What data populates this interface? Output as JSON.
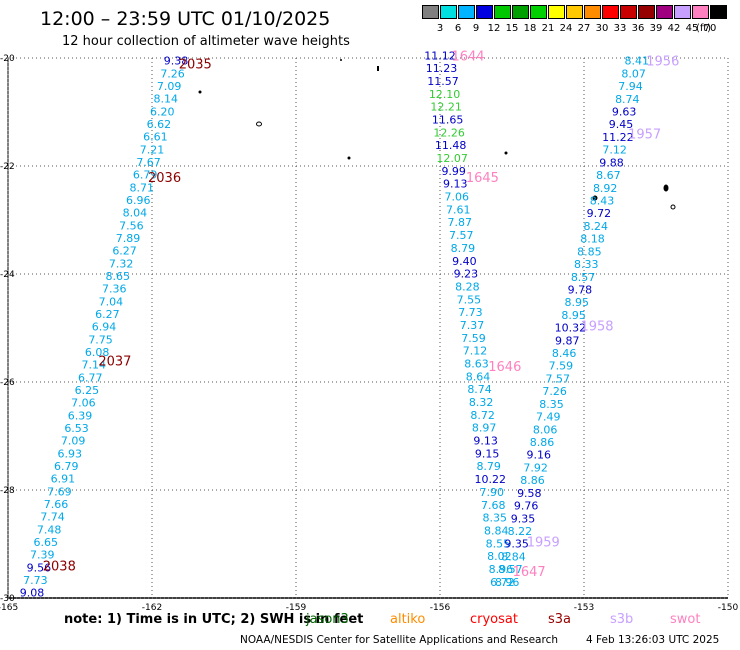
{
  "header": {
    "title": "12:00 – 23:59 UTC 01/10/2025",
    "subtitle": "12 hour collection of altimeter wave heights"
  },
  "scale": {
    "unit": "(ft)",
    "items": [
      {
        "label": "3",
        "color": "#808080"
      },
      {
        "label": "6",
        "color": "#00e0e0"
      },
      {
        "label": "9",
        "color": "#00b4ff"
      },
      {
        "label": "12",
        "color": "#0000e0"
      },
      {
        "label": "15",
        "color": "#00c800"
      },
      {
        "label": "18",
        "color": "#00a000"
      },
      {
        "label": "21",
        "color": "#00d000"
      },
      {
        "label": "24",
        "color": "#ffff00"
      },
      {
        "label": "27",
        "color": "#ffc800"
      },
      {
        "label": "30",
        "color": "#ff8c00"
      },
      {
        "label": "33",
        "color": "#ff0000"
      },
      {
        "label": "36",
        "color": "#c80000"
      },
      {
        "label": "39",
        "color": "#960000"
      },
      {
        "label": "42",
        "color": "#a00080"
      },
      {
        "label": "45",
        "color": "#c8a0ff"
      },
      {
        "label": "70",
        "color": "#ff80c0"
      },
      {
        "label": "",
        "color": "#000000"
      }
    ]
  },
  "map": {
    "lat_ticks": [
      "-20",
      "-22",
      "-24",
      "-26",
      "-28",
      "-30"
    ],
    "lon_ticks": [
      "-165",
      "-162",
      "-159",
      "-156",
      "-153",
      "-150"
    ]
  },
  "tracks": {
    "jason3": {
      "times": [
        {
          "label": "2035",
          "lat": -20.1
        },
        {
          "label": "2036",
          "lat": -22.2
        },
        {
          "label": "2037",
          "lat": -25.6
        },
        {
          "label": "2038",
          "lat": -29.4
        }
      ],
      "values": [
        "9.38",
        "7.26",
        "7.09",
        "8.14",
        "6.20",
        "6.62",
        "6.61",
        "7.21",
        "7.67",
        "6.79",
        "8.71",
        "6.96",
        "8.04",
        "7.56",
        "7.89",
        "6.27",
        "7.32",
        "8.65",
        "7.36",
        "7.04",
        "6.27",
        "6.94",
        "7.75",
        "6.08",
        "7.14",
        "6.77",
        "6.25",
        "7.06",
        "6.39",
        "6.53",
        "7.09",
        "6.93",
        "6.79",
        "6.91",
        "7.69",
        "7.66",
        "7.74",
        "7.48",
        "6.65",
        "7.39",
        "9.56",
        "7.73",
        "9.08"
      ]
    },
    "altika": {
      "times": [
        {
          "label": "1644",
          "lat": -19.95
        },
        {
          "label": "1645",
          "lat": -22.2
        },
        {
          "label": "1646",
          "lat": -25.7
        },
        {
          "label": "1647",
          "lat": -29.5
        }
      ],
      "values": [
        "11.12",
        "11.23",
        "11.57",
        "12.10",
        "12.21",
        "11.65",
        "12.26",
        "11.48",
        "12.07",
        "9.99",
        "9.13",
        "7.06",
        "7.61",
        "7.87",
        "7.57",
        "8.79",
        "9.40",
        "9.23",
        "8.28",
        "7.55",
        "7.73",
        "7.37",
        "7.59",
        "7.12",
        "8.63",
        "8.64",
        "8.74",
        "8.32",
        "8.72",
        "8.97",
        "9.13",
        "9.15",
        "8.79",
        "10.22",
        "7.90",
        "7.68",
        "8.35",
        "8.84",
        "8.55",
        "8.02",
        "8.96",
        "6.72"
      ]
    },
    "s3a": {
      "times": [
        {
          "label": "1956",
          "lat": -20.05
        },
        {
          "label": "1957",
          "lat": -21.4
        },
        {
          "label": "1958",
          "lat": -24.95
        },
        {
          "label": "1959",
          "lat": -28.95
        }
      ],
      "values": [
        "8.41",
        "8.07",
        "7.94",
        "8.74",
        "9.63",
        "9.45",
        "11.22",
        "7.12",
        "9.88",
        "8.67",
        "8.92",
        "8.43",
        "9.72",
        "8.24",
        "8.18",
        "8.85",
        "8.33",
        "8.57",
        "9.78",
        "8.95",
        "8.95",
        "10.32",
        "9.87",
        "8.46",
        "7.59",
        "7.57",
        "7.26",
        "8.35",
        "7.49",
        "8.06",
        "8.86",
        "9.16",
        "7.92",
        "8.86",
        "9.58",
        "9.76",
        "9.35",
        "8.22",
        "9.35",
        "8.84",
        "8.57",
        "8.96"
      ]
    }
  },
  "footer": {
    "note": "note:  1) Time is in UTC; 2) SWH is in feet",
    "credit": "NOAA/NESDIS Center for Satellite Applications and Research",
    "timestamp": "4 Feb 13:26:03 UTC 2025",
    "legend": [
      {
        "label": "jason3",
        "color": "#006400"
      },
      {
        "label": "altiko",
        "color": "#ff8c00"
      },
      {
        "label": "cryosat",
        "color": "#ff0000"
      },
      {
        "label": "s3a",
        "color": "#960000"
      },
      {
        "label": "s3b",
        "color": "#c8a0ff"
      },
      {
        "label": "swot",
        "color": "#ff80c0"
      }
    ]
  }
}
